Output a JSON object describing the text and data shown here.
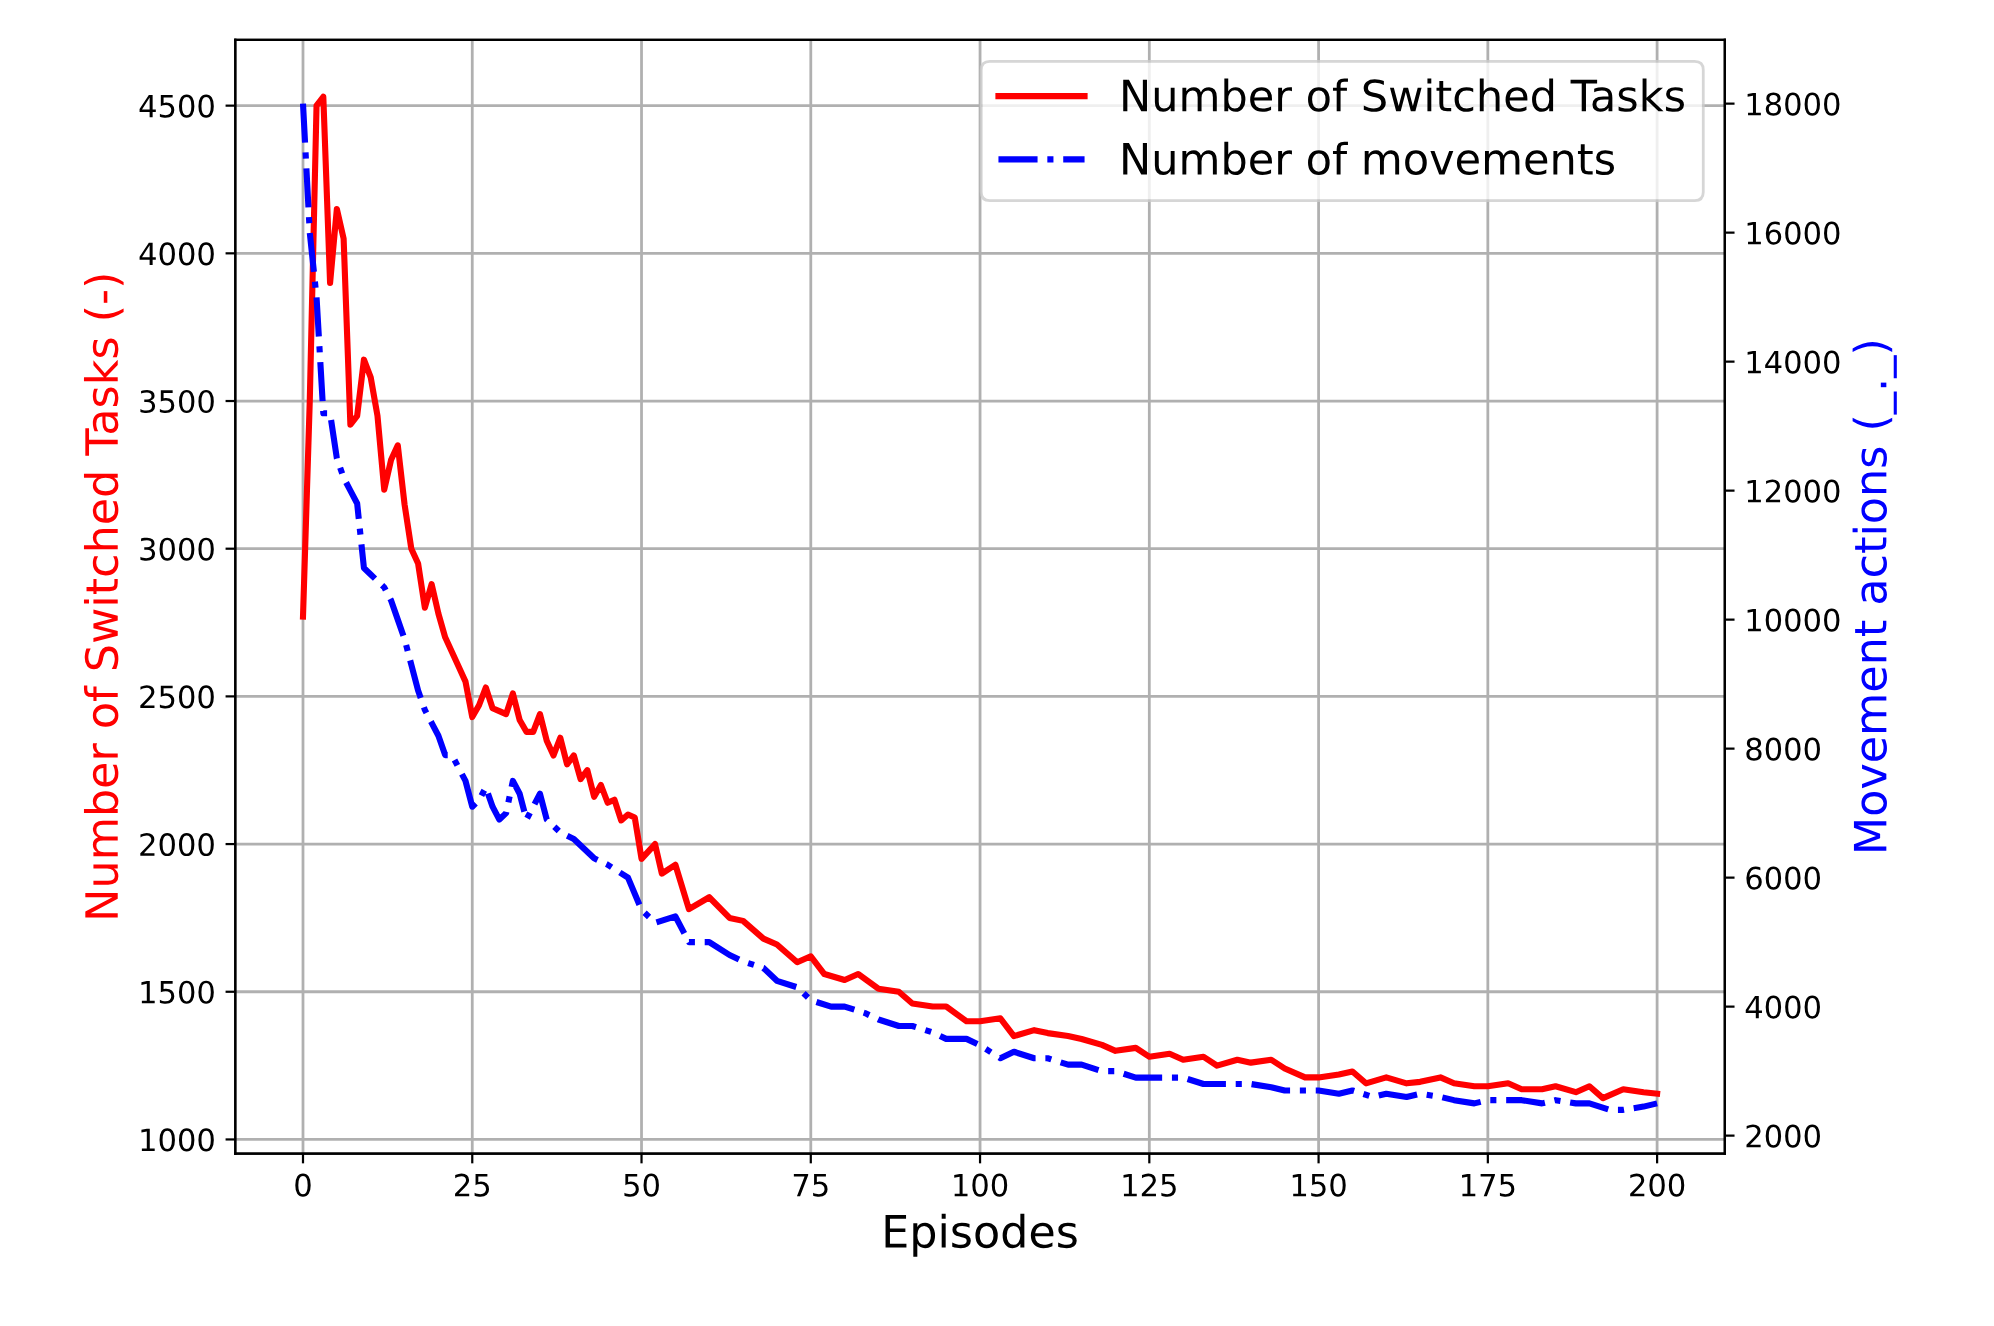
{
  "chart_data": {
    "type": "line",
    "xlabel": "Episodes",
    "ylabel": "Number of Switched Tasks (-)",
    "y2label": "Movement actions (_._)",
    "xlim": [
      -10,
      210
    ],
    "xticks": [
      0,
      25,
      50,
      75,
      100,
      125,
      150,
      175,
      200
    ],
    "ylim": [
      952,
      4723
    ],
    "yticks": [
      1000,
      1500,
      2000,
      2500,
      3000,
      3500,
      4000,
      4500
    ],
    "y2lim": [
      1721,
      18990
    ],
    "y2ticks": [
      2000,
      4000,
      6000,
      8000,
      10000,
      12000,
      14000,
      16000,
      18000
    ],
    "grid": true,
    "legend": "top right",
    "series": [
      {
        "name": "Number of Switched Tasks",
        "color": "#ff0000",
        "line_style": "solid",
        "x": [
          0,
          1,
          2,
          3,
          4,
          5,
          6,
          7,
          8,
          9,
          10,
          11,
          12,
          13,
          14,
          15,
          16,
          17,
          18,
          19,
          20,
          21,
          22,
          23,
          24,
          25,
          26,
          27,
          28,
          29,
          30,
          31,
          32,
          33,
          34,
          35,
          36,
          37,
          38,
          39,
          40,
          41,
          42,
          43,
          44,
          45,
          46,
          47,
          48,
          49,
          50,
          52,
          53,
          55,
          57,
          60,
          63,
          65,
          68,
          70,
          73,
          75,
          77,
          80,
          82,
          85,
          88,
          90,
          93,
          95,
          98,
          100,
          103,
          105,
          108,
          110,
          113,
          115,
          118,
          120,
          123,
          125,
          128,
          130,
          133,
          135,
          138,
          140,
          143,
          145,
          148,
          150,
          153,
          155,
          157,
          160,
          163,
          165,
          168,
          170,
          173,
          175,
          178,
          180,
          183,
          185,
          188,
          190,
          192,
          195,
          198,
          200
        ],
        "values": [
          2770,
          3500,
          4500,
          4530,
          3900,
          4150,
          4050,
          3420,
          3450,
          3640,
          3580,
          3450,
          3200,
          3300,
          3350,
          3150,
          3000,
          2950,
          2800,
          2880,
          2780,
          2700,
          2650,
          2600,
          2550,
          2430,
          2470,
          2530,
          2460,
          2450,
          2440,
          2510,
          2420,
          2380,
          2380,
          2440,
          2350,
          2300,
          2360,
          2270,
          2300,
          2220,
          2250,
          2160,
          2200,
          2140,
          2150,
          2080,
          2100,
          2090,
          1950,
          2000,
          1900,
          1930,
          1780,
          1820,
          1750,
          1740,
          1680,
          1660,
          1600,
          1620,
          1560,
          1540,
          1560,
          1510,
          1500,
          1460,
          1450,
          1450,
          1400,
          1400,
          1410,
          1350,
          1370,
          1360,
          1350,
          1340,
          1320,
          1300,
          1310,
          1280,
          1290,
          1270,
          1280,
          1250,
          1270,
          1260,
          1270,
          1240,
          1210,
          1210,
          1220,
          1230,
          1190,
          1210,
          1190,
          1195,
          1210,
          1190,
          1180,
          1180,
          1190,
          1170,
          1170,
          1180,
          1160,
          1180,
          1140,
          1170,
          1160,
          1155
        ]
      },
      {
        "name": "Number of movements",
        "color": "#0000ff",
        "line_style": "dashdot",
        "axis": "y2",
        "x": [
          0,
          1,
          2,
          3,
          4,
          5,
          6,
          7,
          8,
          9,
          10,
          11,
          12,
          13,
          14,
          15,
          16,
          17,
          18,
          19,
          20,
          21,
          22,
          23,
          24,
          25,
          26,
          27,
          28,
          29,
          30,
          31,
          32,
          33,
          34,
          35,
          36,
          37,
          38,
          40,
          43,
          45,
          48,
          50,
          52,
          55,
          57,
          60,
          63,
          65,
          68,
          70,
          73,
          75,
          78,
          80,
          83,
          85,
          88,
          90,
          93,
          95,
          98,
          100,
          103,
          105,
          108,
          110,
          113,
          115,
          118,
          120,
          123,
          125,
          128,
          130,
          133,
          135,
          138,
          140,
          143,
          145,
          148,
          150,
          153,
          155,
          158,
          160,
          163,
          165,
          168,
          170,
          173,
          175,
          178,
          180,
          183,
          185,
          188,
          190,
          193,
          195,
          198,
          200
        ],
        "values": [
          18000,
          16000,
          15000,
          13200,
          13200,
          12500,
          12200,
          12000,
          11800,
          10800,
          10700,
          10600,
          10500,
          10300,
          10000,
          9700,
          9300,
          8900,
          8600,
          8400,
          8200,
          7900,
          7900,
          7700,
          7500,
          7100,
          7200,
          7400,
          7100,
          6900,
          7000,
          7500,
          7300,
          6900,
          7100,
          7300,
          6900,
          6800,
          6700,
          6600,
          6300,
          6200,
          6000,
          5500,
          5300,
          5400,
          5000,
          5000,
          4800,
          4700,
          4600,
          4400,
          4300,
          4100,
          4000,
          4000,
          3900,
          3800,
          3700,
          3700,
          3600,
          3500,
          3500,
          3400,
          3200,
          3300,
          3200,
          3200,
          3100,
          3100,
          3000,
          3000,
          2900,
          2900,
          2900,
          2900,
          2800,
          2800,
          2800,
          2800,
          2750,
          2700,
          2700,
          2700,
          2650,
          2700,
          2600,
          2650,
          2600,
          2650,
          2600,
          2550,
          2500,
          2550,
          2550,
          2550,
          2500,
          2550,
          2500,
          2500,
          2400,
          2400,
          2450,
          2500
        ]
      }
    ]
  }
}
